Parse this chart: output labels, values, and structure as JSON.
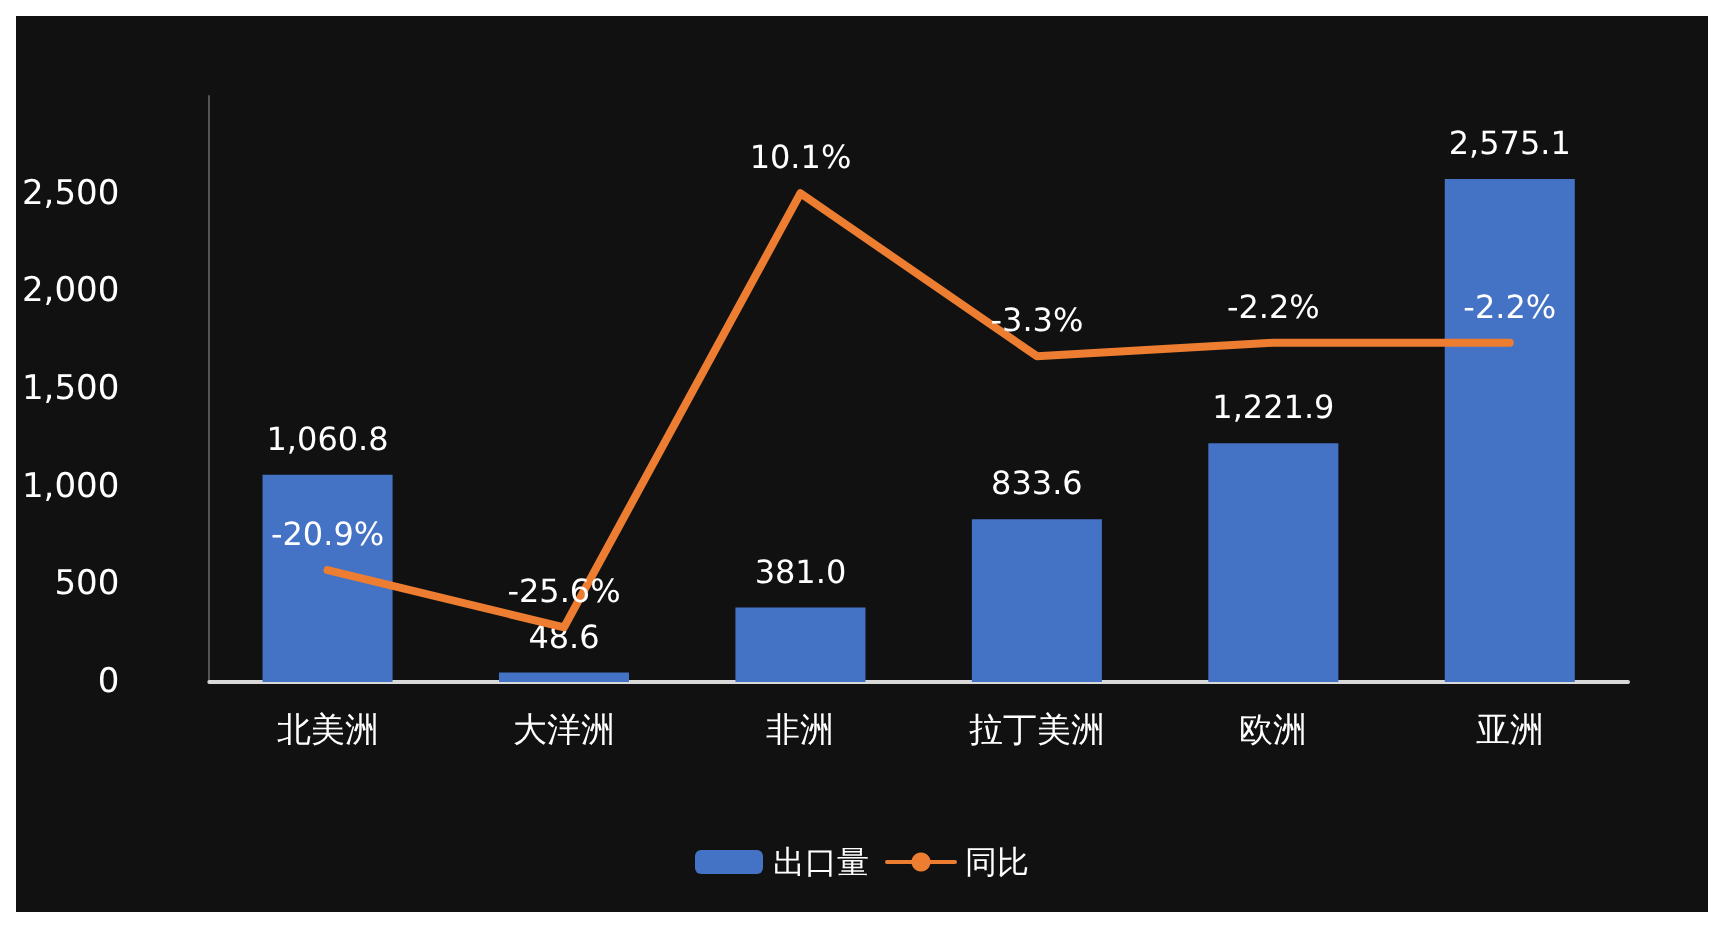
{
  "chart_data": {
    "type": "bar",
    "categories": [
      "北美洲",
      "大洋洲",
      "非洲",
      "拉丁美洲",
      "欧洲",
      "亚洲"
    ],
    "series": [
      {
        "name": "出口量",
        "color": "#4472c4",
        "values": [
          1060.8,
          48.6,
          381.0,
          833.6,
          1221.9,
          2575.1
        ],
        "value_labels": [
          "1,060.8",
          "48.6",
          "381.0",
          "833.6",
          "1,221.9",
          "2,575.1"
        ]
      },
      {
        "name": "同比",
        "type": "line",
        "axis": "y2",
        "color": "#ed7d31",
        "marker": "none",
        "values": [
          -20.9,
          -25.6,
          10.1,
          -3.3,
          -2.2,
          -2.2
        ],
        "value_labels": [
          "-20.9%",
          "-25.6%",
          "10.1%",
          "-3.3%",
          "-2.2%",
          "-2.2%"
        ]
      }
    ],
    "ylim": [
      0,
      3000
    ],
    "yticks": [
      {
        "value": 0,
        "label": "0"
      },
      {
        "value": 500,
        "label": "500"
      },
      {
        "value": 1000,
        "label": "1,000"
      },
      {
        "value": 1500,
        "label": "1,500"
      },
      {
        "value": 2000,
        "label": "2,000"
      },
      {
        "value": 2500,
        "label": "2,500"
      }
    ],
    "grid": false,
    "legend": "bottom"
  }
}
